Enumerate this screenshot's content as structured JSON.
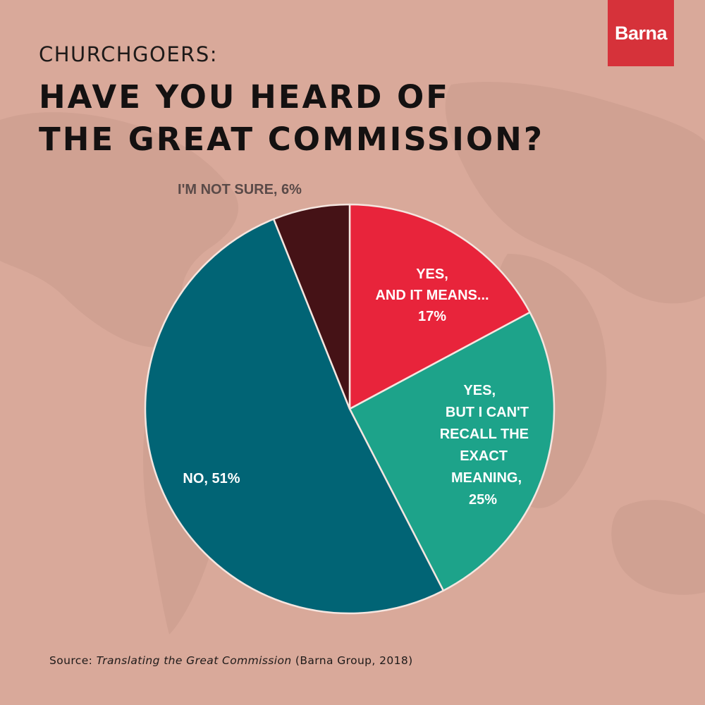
{
  "brand": {
    "logo_text": "Barna",
    "logo_color": "#d6323a"
  },
  "header": {
    "subtitle": "CHURCHGOERS:",
    "title_line1": "HAVE YOU HEARD OF",
    "title_line2": "THE GREAT COMMISSION?"
  },
  "source": {
    "prefix": "Source: ",
    "title": "Translating the Great Commission",
    "suffix": " (Barna Group, 2018)"
  },
  "colors": {
    "background": "#d9a99a",
    "slice_stroke": "#f5e6e0"
  },
  "chart_data": {
    "type": "pie",
    "start": "12 o'clock",
    "direction": "clockwise",
    "slices": [
      {
        "label_lines": [
          "YES,",
          "AND IT MEANS...",
          "17%"
        ],
        "value": 17,
        "color": "#e8243b",
        "label_color": "#ffffff"
      },
      {
        "label_lines": [
          "YES,",
          "BUT I CAN'T",
          "RECALL THE",
          "EXACT",
          "MEANING,",
          "25%"
        ],
        "value": 25,
        "color": "#1da38a",
        "label_color": "#ffffff"
      },
      {
        "label_lines": [
          "NO, 51%"
        ],
        "value": 51,
        "color": "#016475",
        "label_color": "#ffffff"
      },
      {
        "label_lines": [
          "I'M NOT SURE, 6%"
        ],
        "value": 6,
        "color": "#451216",
        "label_color": "#5a4a48"
      }
    ]
  }
}
